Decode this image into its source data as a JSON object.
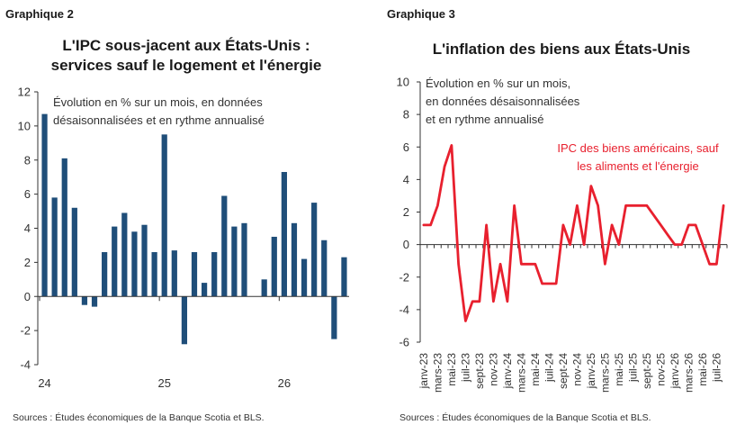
{
  "left": {
    "label": "Graphique 2",
    "title_line1": "L'IPC sous-jacent aux États-Unis :",
    "title_line2": "services sauf le logement et l'énergie",
    "note_line1": "Évolution en % sur un mois, en données",
    "note_line2": "désaisonnalisées et en rythme annualisé",
    "source": "Sources : Études économiques de la Banque Scotia et BLS."
  },
  "right": {
    "label": "Graphique 3",
    "title": "L'inflation des biens aux États-Unis",
    "note_line1": "Évolution en % sur un mois,",
    "note_line2": "en données désaisonnalisées",
    "note_line3": "et en rythme annualisé",
    "series_label_line1": "IPC des biens américains, sauf",
    "series_label_line2": "les aliments et l'énergie",
    "source": "Sources : Études économiques de la Banque Scotia et BLS."
  },
  "chart_data": [
    {
      "type": "bar",
      "ylim": [
        -4,
        12
      ],
      "yticks": [
        -4,
        -2,
        0,
        2,
        4,
        6,
        8,
        10,
        12
      ],
      "x_tick_labels": [
        "24",
        "25",
        "26"
      ],
      "values": [
        10.7,
        5.8,
        8.1,
        5.2,
        -0.5,
        -0.6,
        2.6,
        4.1,
        4.9,
        3.8,
        4.2,
        2.6,
        9.5,
        2.7,
        -2.8,
        2.6,
        0.8,
        2.6,
        5.9,
        4.1,
        4.3,
        null,
        1.0,
        3.5,
        7.3,
        4.3,
        2.2,
        5.5,
        3.3,
        -2.5,
        2.3
      ],
      "color": "#1f4e79",
      "grid": false
    },
    {
      "type": "line",
      "ylim": [
        -6,
        10
      ],
      "yticks": [
        -6,
        -4,
        -2,
        0,
        2,
        4,
        6,
        8,
        10
      ],
      "x_tick_labels": [
        "janv-23",
        "mars-23",
        "mai-23",
        "juil-23",
        "sept-23",
        "nov-23",
        "janv-24",
        "mars-24",
        "mai-24",
        "juil-24",
        "sept-24",
        "nov-24",
        "janv-25",
        "mars-25",
        "mai-25",
        "juil-25",
        "sept-25",
        "nov-25",
        "janv-26",
        "mars-26",
        "mai-26",
        "juil-26"
      ],
      "values": [
        1.2,
        1.2,
        2.4,
        4.8,
        6.1,
        -1.2,
        -4.7,
        -3.5,
        -3.5,
        1.2,
        -3.5,
        -1.2,
        -3.5,
        2.4,
        -1.2,
        -1.2,
        -1.2,
        -2.4,
        -2.4,
        -2.4,
        1.2,
        0.0,
        2.4,
        0.0,
        3.6,
        2.4,
        -1.2,
        1.2,
        0.0,
        2.4,
        2.4,
        2.4,
        2.4,
        1.8,
        1.2,
        0.6,
        0.0,
        0.0,
        1.2,
        1.2,
        0.0,
        -1.2,
        -1.2,
        2.4
      ],
      "color": "#e8202e",
      "grid": false
    }
  ]
}
